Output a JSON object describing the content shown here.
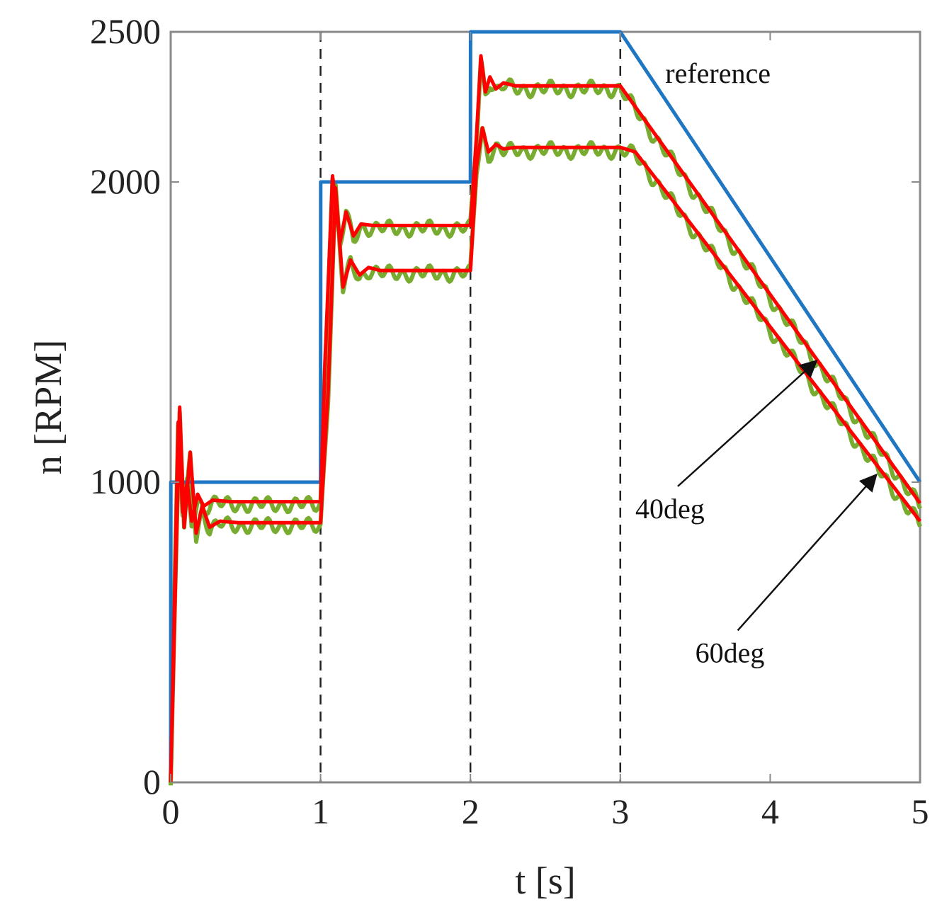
{
  "chart_data": {
    "type": "line",
    "title": "",
    "xlabel": "t [s]",
    "ylabel": "n [RPM]",
    "xlim": [
      0,
      5
    ],
    "ylim": [
      0,
      2500
    ],
    "xticks": [
      0,
      1,
      2,
      3,
      4,
      5
    ],
    "xtick_labels": [
      "0",
      "1",
      "2",
      "3",
      "4",
      "5"
    ],
    "yticks": [
      0,
      1000,
      2000,
      2500
    ],
    "ytick_labels": [
      "0",
      "1000",
      "2000",
      "2500"
    ],
    "grid": false,
    "vertical_dashed_lines_x": [
      1,
      2,
      3
    ],
    "colors": {
      "reference": "#1f77c4",
      "controlled": "#ff0000",
      "measured": "#77ac30",
      "axis": "#8a8a8a",
      "dashed": "#222222"
    },
    "series": [
      {
        "name": "reference",
        "color": "#1f77c4",
        "x": [
          0,
          0.001,
          1,
          1.001,
          2,
          2.001,
          3,
          5
        ],
        "values": [
          0,
          1000,
          1000,
          2000,
          2000,
          2500,
          2500,
          1000
        ]
      },
      {
        "name": "40deg",
        "color": "#ff0000",
        "x": [
          0,
          0.05,
          0.08,
          0.11,
          0.14,
          0.18,
          0.22,
          0.28,
          0.4,
          1.0,
          1.03,
          1.08,
          1.13,
          1.17,
          1.22,
          1.27,
          1.35,
          1.5,
          2.0,
          2.04,
          2.07,
          2.1,
          2.13,
          2.17,
          2.22,
          2.3,
          3.0,
          5.0
        ],
        "values": [
          0,
          1200,
          900,
          1000,
          870,
          960,
          920,
          940,
          935,
          935,
          1400,
          2020,
          1800,
          1900,
          1820,
          1860,
          1855,
          1855,
          1855,
          2150,
          2420,
          2300,
          2350,
          2310,
          2330,
          2320,
          2320,
          930
        ]
      },
      {
        "name": "60deg",
        "color": "#ff0000",
        "x": [
          0,
          0.06,
          0.09,
          0.13,
          0.17,
          0.21,
          0.26,
          0.33,
          0.45,
          1.0,
          1.05,
          1.1,
          1.15,
          1.2,
          1.26,
          1.32,
          1.4,
          1.55,
          2.0,
          2.04,
          2.08,
          2.12,
          2.17,
          2.22,
          2.3,
          2.45,
          3.0,
          3.1,
          5.0
        ],
        "values": [
          0,
          1250,
          850,
          1100,
          830,
          920,
          850,
          870,
          865,
          865,
          1300,
          1980,
          1650,
          1740,
          1690,
          1715,
          1705,
          1705,
          1705,
          2050,
          2180,
          2100,
          2125,
          2110,
          2115,
          2115,
          2115,
          2100,
          870
        ]
      }
    ],
    "annotations": [
      {
        "text": "reference",
        "x": 3.3,
        "y": 2330
      },
      {
        "text": "40deg",
        "x": 3.1,
        "y": 880,
        "arrow_to": [
          4.3,
          1400
        ]
      },
      {
        "text": "60deg",
        "x": 3.5,
        "y": 400,
        "arrow_to": [
          4.7,
          1020
        ]
      }
    ]
  }
}
